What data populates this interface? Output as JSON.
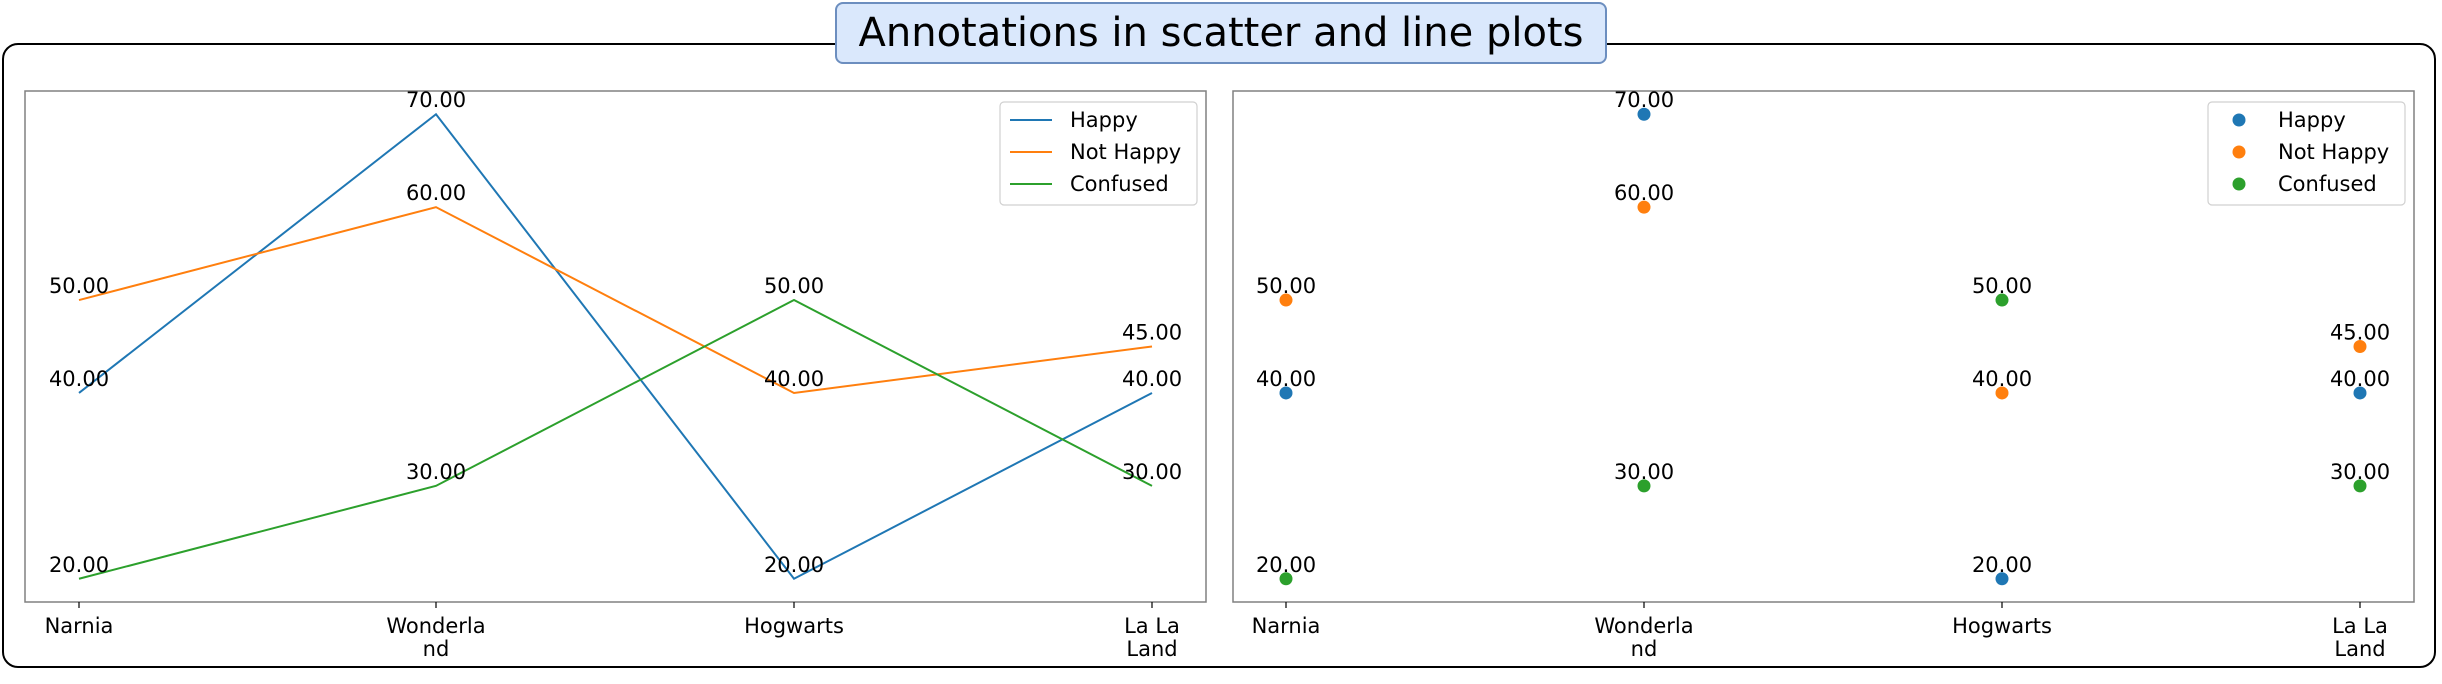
{
  "title": "Annotations in scatter and line plots",
  "chart_data": [
    {
      "type": "line",
      "categories": [
        "Narnia",
        "Wonderland",
        "Hogwarts",
        "La La Land"
      ],
      "category_display": [
        [
          "Narnia"
        ],
        [
          "Wonderla",
          "nd"
        ],
        [
          "Hogwarts"
        ],
        [
          "La La",
          "Land"
        ]
      ],
      "series": [
        {
          "name": "Happy",
          "color": "#1f77b4",
          "values": [
            40,
            70,
            20,
            40
          ]
        },
        {
          "name": "Not Happy",
          "color": "#ff7f0e",
          "values": [
            50,
            60,
            40,
            45
          ]
        },
        {
          "name": "Confused",
          "color": "#2ca02c",
          "values": [
            20,
            30,
            50,
            30
          ]
        }
      ],
      "ylim": [
        17.5,
        72.5
      ],
      "annotation_format": "2 decimals",
      "legend": "top-right",
      "grid": false
    },
    {
      "type": "scatter",
      "categories": [
        "Narnia",
        "Wonderland",
        "Hogwarts",
        "La La Land"
      ],
      "category_display": [
        [
          "Narnia"
        ],
        [
          "Wonderla",
          "nd"
        ],
        [
          "Hogwarts"
        ],
        [
          "La La",
          "Land"
        ]
      ],
      "series": [
        {
          "name": "Happy",
          "color": "#1f77b4",
          "values": [
            40,
            70,
            20,
            40
          ]
        },
        {
          "name": "Not Happy",
          "color": "#ff7f0e",
          "values": [
            50,
            60,
            40,
            45
          ]
        },
        {
          "name": "Confused",
          "color": "#2ca02c",
          "values": [
            20,
            30,
            50,
            30
          ]
        }
      ],
      "ylim": [
        17.5,
        72.5
      ],
      "annotation_format": "2 decimals",
      "legend": "top-right",
      "grid": false
    }
  ]
}
